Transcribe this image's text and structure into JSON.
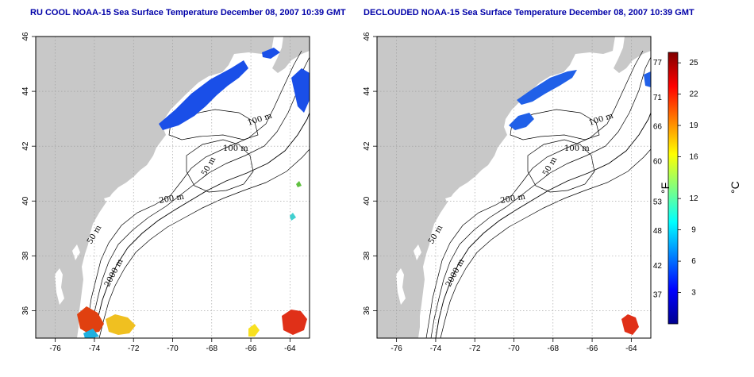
{
  "titles": {
    "left": "RU COOL NOAA-15 Sea Surface Temperature December 08, 2007 10:39 GMT",
    "right": "DECLOUDED NOAA-15 Sea Surface Temperature December 08, 2007 10:39 GMT"
  },
  "map": {
    "lon_range": [
      -77,
      -63
    ],
    "lat_range": [
      35,
      46
    ],
    "lon_ticks": [
      "-76",
      "-74",
      "-72",
      "-70",
      "-68",
      "-66",
      "-64"
    ],
    "lat_ticks": [
      "36",
      "38",
      "40",
      "42",
      "44",
      "46"
    ],
    "land_color": "#c8c8c8",
    "water_color": "#ffffff",
    "grid": "dotted"
  },
  "contour_labels": {
    "left": [
      "100 m",
      "100 m",
      "50 m",
      "200 m",
      "50 m",
      "2000 m"
    ],
    "right": [
      "100 m",
      "100 m",
      "50 m",
      "200 m",
      "50 m",
      "2000 m"
    ]
  },
  "colorbar": {
    "fahrenheit_ticks": [
      "77",
      "71",
      "66",
      "60",
      "53",
      "48",
      "42",
      "37"
    ],
    "celsius_ticks": [
      "25",
      "22",
      "19",
      "16",
      "12",
      "9",
      "6",
      "3"
    ],
    "fahrenheit_unit": "°F",
    "celsius_unit": "°C",
    "range_celsius": [
      0,
      26
    ],
    "colors": [
      "#00008f",
      "#0000ff",
      "#0080ff",
      "#00ffff",
      "#80ff80",
      "#ffff00",
      "#ff8000",
      "#ff0000",
      "#800000"
    ]
  }
}
